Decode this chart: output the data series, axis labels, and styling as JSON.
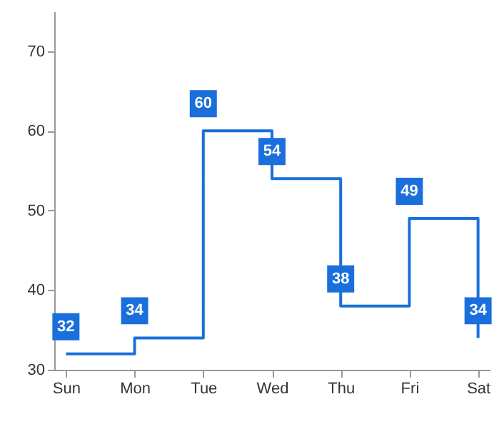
{
  "chart_data": {
    "type": "step",
    "categories": [
      "Sun",
      "Mon",
      "Tue",
      "Wed",
      "Thu",
      "Fri",
      "Sat"
    ],
    "series": [
      {
        "color": "#1a6fdc",
        "values": [
          32,
          34,
          60,
          54,
          38,
          49,
          34
        ]
      }
    ],
    "ylim": [
      30,
      75
    ],
    "yticks": [
      30,
      40,
      50,
      60,
      70
    ],
    "grid": false,
    "data_labels": true,
    "marker": "none",
    "line_style": "solid"
  }
}
